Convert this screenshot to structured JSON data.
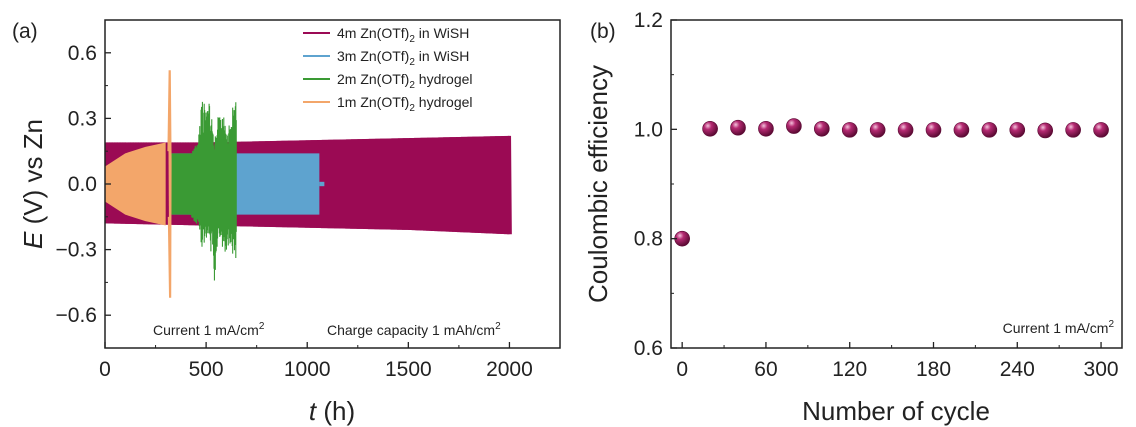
{
  "figure": {
    "panels": [
      "(a)",
      "(b)"
    ]
  },
  "chart_data": [
    {
      "type": "line",
      "panel": "(a)",
      "xlabel_var": "t",
      "xlabel_unit": " (h)",
      "ylabel_var": "E",
      "ylabel_unit": " (V) vs Zn",
      "xlim": [
        0,
        2250
      ],
      "ylim": [
        -0.75,
        0.75
      ],
      "xticks": [
        0,
        500,
        1000,
        1500,
        2000
      ],
      "yticks": [
        -0.6,
        -0.3,
        0.0,
        0.3,
        0.6
      ],
      "xtick_labels": [
        "0",
        "500",
        "1000",
        "1500",
        "2000"
      ],
      "ytick_labels": [
        "−0.6",
        "−0.3",
        "0.0",
        "0.3",
        "0.6"
      ],
      "annotations": {
        "current": {
          "text": "Current 1 mA/cm",
          "sup": "2"
        },
        "capacity": {
          "text": "Charge capacity 1 mAh/cm",
          "sup": "2"
        }
      },
      "series": [
        {
          "label_pre": "4m Zn(OTf)",
          "label_sub": "2",
          "label_post": " in WiSH",
          "color": "#9b0a55",
          "envelope": [
            [
              0,
              0.19
            ],
            [
              500,
              0.19
            ],
            [
              1000,
              0.2
            ],
            [
              1500,
              0.21
            ],
            [
              2000,
              0.22
            ]
          ],
          "envelope_low": [
            [
              0,
              -0.18
            ],
            [
              500,
              -0.19
            ],
            [
              1000,
              -0.2
            ],
            [
              1500,
              -0.21
            ],
            [
              2000,
              -0.23
            ]
          ],
          "end_time": 2000
        },
        {
          "label_pre": "3m Zn(OTf)",
          "label_sub": "2",
          "label_post": " in WiSH",
          "color": "#5ea3cf",
          "envelope": [
            [
              330,
              0.14
            ],
            [
              700,
              0.14
            ],
            [
              1060,
              0.14
            ]
          ],
          "envelope_low": [
            [
              330,
              -0.14
            ],
            [
              700,
              -0.14
            ],
            [
              1060,
              -0.14
            ]
          ],
          "end_time": 1060
        },
        {
          "label_pre": "2m Zn(OTf)",
          "label_sub": "2",
          "label_post": " hydrogel",
          "color": "#3a9a34",
          "spikes": [
            [
              340,
              0.14
            ],
            [
              420,
              0.13
            ],
            [
              460,
              0.2
            ],
            [
              480,
              0.41
            ],
            [
              500,
              0.35
            ],
            [
              520,
              0.38
            ],
            [
              540,
              0.18
            ],
            [
              560,
              0.32
            ],
            [
              580,
              0.36
            ],
            [
              600,
              0.25
            ],
            [
              620,
              0.3
            ],
            [
              640,
              0.4
            ]
          ],
          "spikes_low": [
            [
              340,
              -0.14
            ],
            [
              420,
              -0.14
            ],
            [
              460,
              -0.2
            ],
            [
              480,
              -0.3
            ],
            [
              500,
              -0.25
            ],
            [
              520,
              -0.28
            ],
            [
              540,
              -0.46
            ],
            [
              560,
              -0.22
            ],
            [
              580,
              -0.3
            ],
            [
              600,
              -0.33
            ],
            [
              620,
              -0.28
            ],
            [
              640,
              -0.36
            ]
          ],
          "end_time": 650
        },
        {
          "label_pre": "1m Zn(OTf)",
          "label_sub": "2",
          "label_post": " hydrogel",
          "color": "#f3a66a",
          "envelope": [
            [
              0,
              0.08
            ],
            [
              100,
              0.14
            ],
            [
              200,
              0.17
            ],
            [
              300,
              0.19
            ]
          ],
          "envelope_low": [
            [
              0,
              -0.08
            ],
            [
              100,
              -0.14
            ],
            [
              200,
              -0.17
            ],
            [
              300,
              -0.19
            ]
          ],
          "spike": [
            320,
            0.52,
            -0.52
          ],
          "end_time": 320
        }
      ]
    },
    {
      "type": "scatter",
      "panel": "(b)",
      "xlabel": "Number of cycle",
      "ylabel": "Coulombic efficiency",
      "xlim": [
        -8,
        315
      ],
      "ylim": [
        0.6,
        1.2
      ],
      "xticks": [
        0,
        60,
        120,
        180,
        240,
        300
      ],
      "yticks": [
        0.6,
        0.8,
        1.0,
        1.2
      ],
      "xtick_labels": [
        "0",
        "60",
        "120",
        "180",
        "240",
        "300"
      ],
      "ytick_labels": [
        "0.6",
        "0.8",
        "1.0",
        "1.2"
      ],
      "annotation": {
        "text": "Current 1 mA/cm",
        "sup": "2"
      },
      "color": "#8e1553",
      "x": [
        0,
        20,
        40,
        60,
        80,
        100,
        120,
        140,
        160,
        180,
        200,
        220,
        240,
        260,
        280,
        300
      ],
      "y": [
        0.8,
        1.001,
        1.003,
        1.001,
        1.006,
        1.001,
        0.999,
        0.999,
        0.999,
        0.999,
        0.999,
        0.999,
        0.999,
        0.998,
        0.999,
        0.999
      ]
    }
  ]
}
